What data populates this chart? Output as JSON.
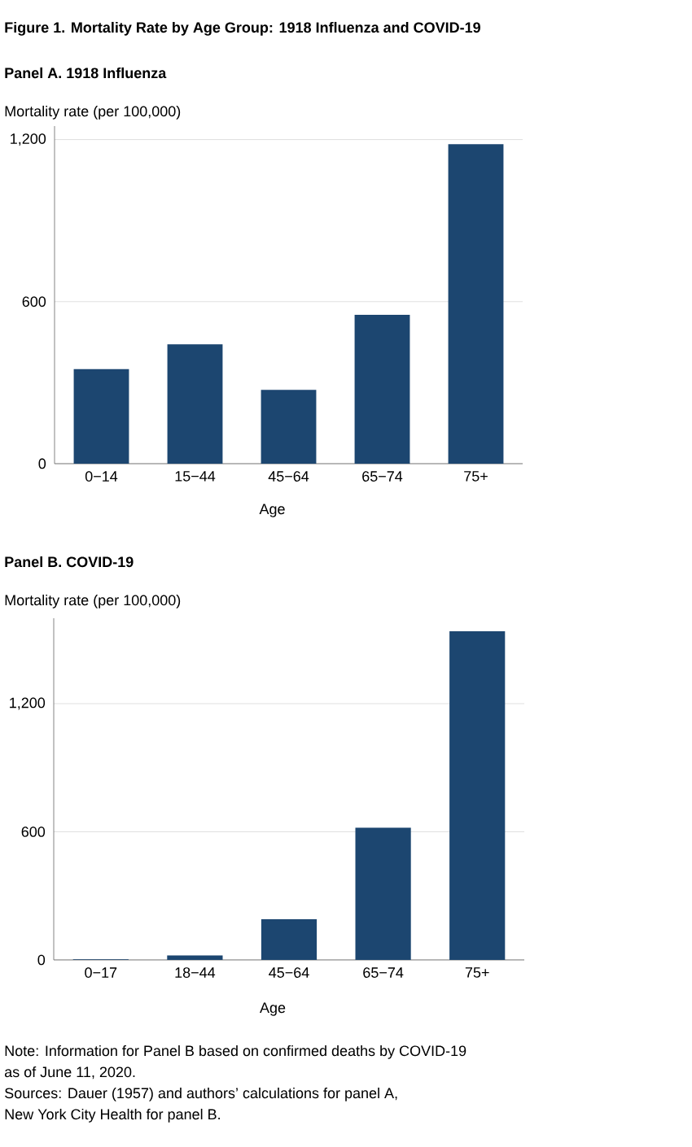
{
  "chart_data": [
    {
      "type": "bar",
      "title": "Figure 1.    Mortality Rate by Age Group: 1918 Influenza and COVID-19",
      "subtitle": "Panel A.    1918 Influenza",
      "ylabel": "Mortality rate (per 100,000)",
      "xlabel": "Age",
      "categories": [
        "0−14",
        "15−44",
        "45−64",
        "65−74",
        "75+"
      ],
      "values": [
        350,
        442,
        273,
        551,
        1183
      ],
      "color": "#1c4670",
      "ylim": [
        0,
        1250
      ],
      "yticks": [
        0,
        600,
        {
          "value": 1200,
          "label": "1,200"
        }
      ],
      "grid": "y"
    },
    {
      "type": "bar",
      "title": "Panel B.    COVID-19",
      "ylabel": "Mortality rate (per 100,000)",
      "xlabel": "Age",
      "categories": [
        "0−17",
        "18−44",
        "45−64",
        "65−74",
        "75+"
      ],
      "values": [
        3,
        21,
        190,
        619,
        1539
      ],
      "color": "#1c4670",
      "ylim": [
        0,
        1600
      ],
      "yticks": [
        0,
        600,
        {
          "value": 1200,
          "label": "1,200"
        }
      ],
      "grid": "y",
      "annotations": [
        "Note: Information for Panel B based on confirmed deaths by COVID-19",
        "as of June 11, 2020.",
        "Sources: Dauer (1957) and authors’ calculations for panel A,",
        "New York City Health for panel B."
      ]
    }
  ]
}
